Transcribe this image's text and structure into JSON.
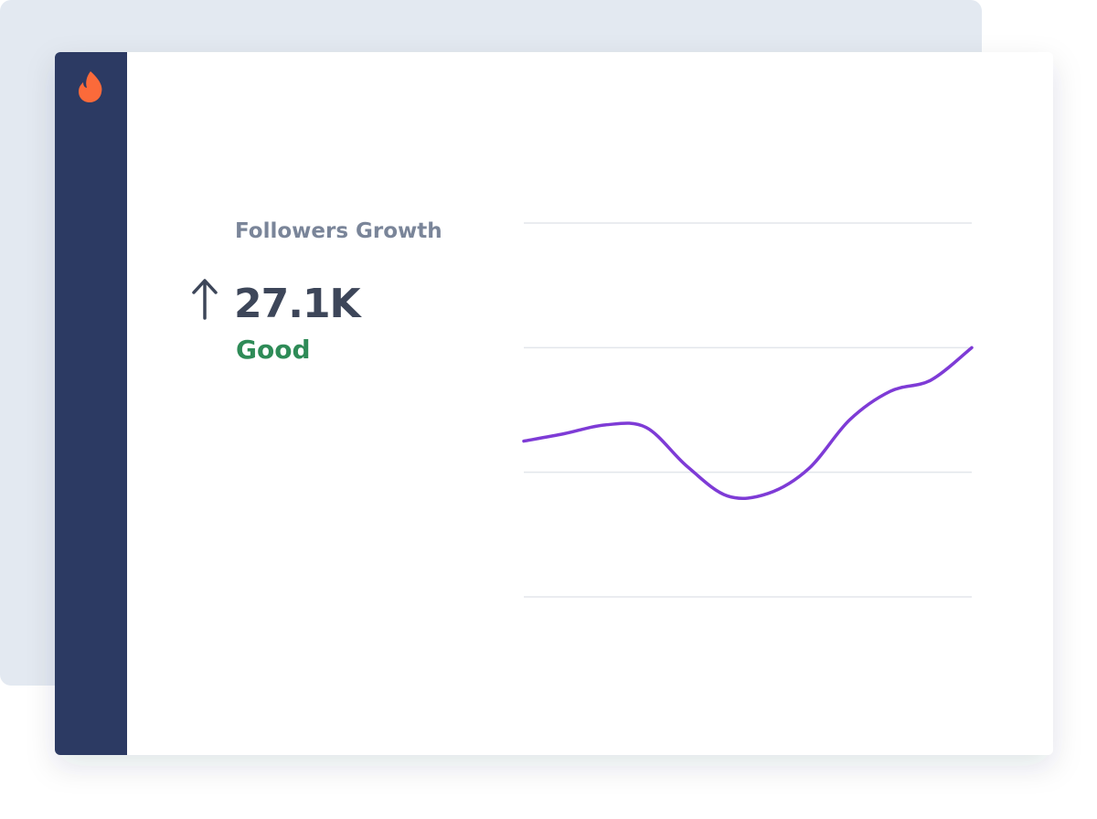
{
  "widget": {
    "title": "Followers Growth",
    "value": "27.1K",
    "status": "Good"
  },
  "chart_data": {
    "type": "line",
    "x": [
      0,
      1,
      2,
      3,
      4,
      5,
      6,
      7,
      8,
      9,
      10,
      11
    ],
    "series": [
      {
        "color": "#7e3bd6",
        "values": [
          1.25,
          1.31,
          1.38,
          1.36,
          1.05,
          0.81,
          0.83,
          1.03,
          1.42,
          1.65,
          1.74,
          2.0
        ]
      }
    ],
    "xlim": [
      0,
      11
    ],
    "ylim": [
      0,
      3
    ],
    "yticks": [
      0,
      1,
      2,
      3
    ],
    "grid": true
  }
}
